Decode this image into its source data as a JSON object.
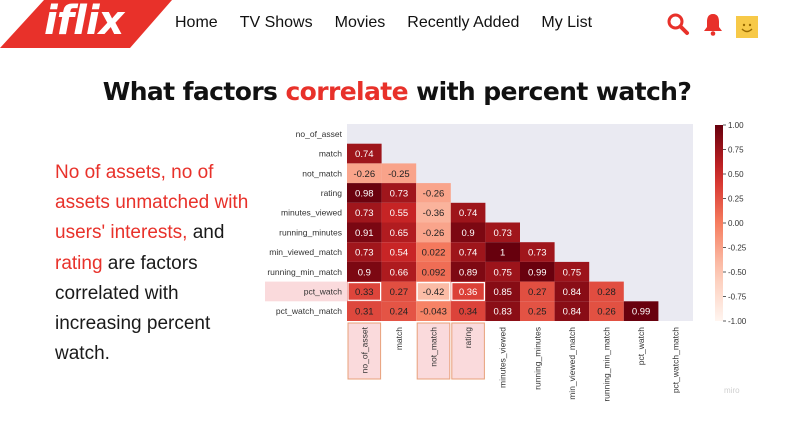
{
  "brand": {
    "logo_text": "iflix",
    "accent": "#e8312a"
  },
  "nav": {
    "items": [
      "Home",
      "TV Shows",
      "Movies",
      "Recently Added",
      "My List"
    ]
  },
  "header_icons": [
    "search-icon",
    "bell-icon",
    "avatar"
  ],
  "title": {
    "before": "What factors ",
    "highlight": "correlate",
    "after": " with percent watch?"
  },
  "paragraph": {
    "red1": "No of assets, no of assets unmatched with users' interests,",
    "mid1": " and ",
    "red2": "rating",
    "mid2": " are factors correlated with increasing percent watch."
  },
  "watermark": "miro",
  "chart_data": {
    "type": "heatmap",
    "rows": [
      "no_of_asset",
      "match",
      "not_match",
      "rating",
      "minutes_viewed",
      "running_minutes",
      "min_viewed_match",
      "running_min_match",
      "pct_watch",
      "pct_watch_match"
    ],
    "columns": [
      "no_of_asset",
      "match",
      "not_match",
      "rating",
      "minutes_viewed",
      "running_minutes",
      "min_viewed_match",
      "running_min_match",
      "pct_watch",
      "pct_watch_match"
    ],
    "values": [
      [],
      [
        0.74
      ],
      [
        -0.26,
        -0.25
      ],
      [
        0.98,
        0.73,
        -0.26
      ],
      [
        0.73,
        0.55,
        -0.36,
        0.74
      ],
      [
        0.91,
        0.65,
        -0.26,
        0.9,
        0.73
      ],
      [
        0.73,
        0.54,
        0.022,
        0.74,
        1,
        0.73
      ],
      [
        0.9,
        0.66,
        0.092,
        0.89,
        0.75,
        0.99,
        0.75
      ],
      [
        0.33,
        0.27,
        -0.42,
        0.36,
        0.85,
        0.27,
        0.84,
        0.28
      ],
      [
        0.31,
        0.24,
        -0.043,
        0.34,
        0.83,
        0.25,
        0.84,
        0.26,
        0.99
      ]
    ],
    "labels": [
      [],
      [
        "0.74"
      ],
      [
        "-0.26",
        "-0.25"
      ],
      [
        "0.98",
        "0.73",
        "-0.26"
      ],
      [
        "0.73",
        "0.55",
        "-0.36",
        "0.74"
      ],
      [
        "0.91",
        "0.65",
        "-0.26",
        "0.9",
        "0.73"
      ],
      [
        "0.73",
        "0.54",
        "0.022",
        "0.74",
        "1",
        "0.73"
      ],
      [
        "0.9",
        "0.66",
        "0.092",
        "0.89",
        "0.75",
        "0.99",
        "0.75"
      ],
      [
        "0.33",
        "0.27",
        "-0.42",
        "0.36",
        "0.85",
        "0.27",
        "0.84",
        "0.28"
      ],
      [
        "0.31",
        "0.24",
        "-0.043",
        "0.34",
        "0.83",
        "0.25",
        "0.84",
        "0.26",
        "0.99"
      ]
    ],
    "colorbar_ticks": [
      "1.00",
      "0.75",
      "0.50",
      "0.25",
      "0.00",
      "-0.25",
      "-0.50",
      "-0.75",
      "-1.00"
    ],
    "vrange": [
      -1,
      1
    ],
    "highlighted_row": "pct_watch",
    "highlighted_columns": [
      "no_of_asset",
      "not_match",
      "rating"
    ],
    "colors": {
      "background": "#eaeaf2",
      "highlight_fill": "#fadadc",
      "highlight_border": "#e8a07a"
    }
  }
}
